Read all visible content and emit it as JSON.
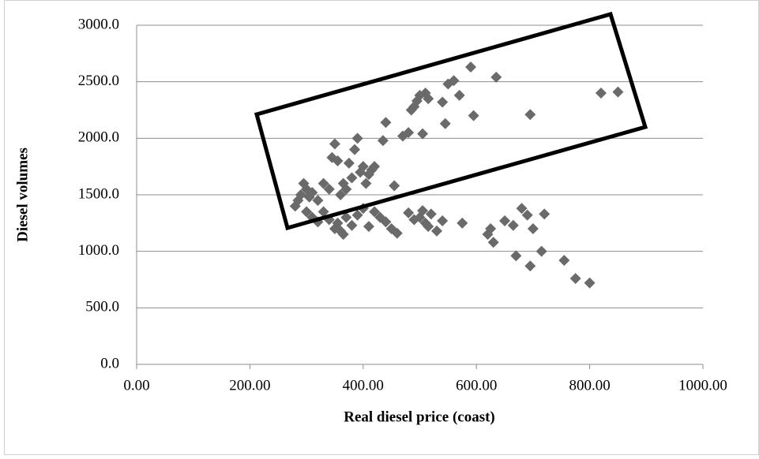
{
  "chart_data": {
    "type": "scatter",
    "x_label": "Real diesel price (coast)",
    "y_label": "Diesel volumes",
    "xlim": [
      0,
      1000
    ],
    "ylim": [
      0,
      3000
    ],
    "xticks": [
      {
        "value": 0,
        "label": "0.00"
      },
      {
        "value": 200,
        "label": "200.00"
      },
      {
        "value": 400,
        "label": "400.00"
      },
      {
        "value": 600,
        "label": "600.00"
      },
      {
        "value": 800,
        "label": "800.00"
      },
      {
        "value": 1000,
        "label": "1000.00"
      }
    ],
    "yticks": [
      {
        "value": 0,
        "label": "0.0"
      },
      {
        "value": 500,
        "label": "500.0"
      },
      {
        "value": 1000,
        "label": "1000.0"
      },
      {
        "value": 1500,
        "label": "1500.0"
      },
      {
        "value": 2000,
        "label": "2000.0"
      },
      {
        "value": 2500,
        "label": "2500.0"
      },
      {
        "value": 3000,
        "label": "3000.0"
      }
    ],
    "grid": true,
    "color": "#6a6a6a",
    "x": [
      280,
      285,
      290,
      295,
      300,
      305,
      310,
      320,
      330,
      340,
      345,
      350,
      355,
      360,
      365,
      370,
      375,
      380,
      385,
      390,
      395,
      400,
      405,
      410,
      415,
      420,
      435,
      440,
      455,
      470,
      480,
      485,
      490,
      495,
      500,
      505,
      510,
      515,
      540,
      545,
      550,
      560,
      570,
      590,
      595,
      635,
      695,
      820,
      850,
      300,
      310,
      320,
      330,
      340,
      350,
      355,
      360,
      365,
      370,
      380,
      390,
      400,
      410,
      420,
      430,
      440,
      450,
      460,
      480,
      490,
      500,
      505,
      510,
      515,
      520,
      530,
      540,
      575,
      620,
      625,
      630,
      650,
      665,
      670,
      680,
      690,
      695,
      700,
      715,
      720,
      755,
      775,
      800
    ],
    "values": [
      1400,
      1450,
      1500,
      1600,
      1550,
      1480,
      1520,
      1450,
      1600,
      1550,
      1830,
      1950,
      1800,
      1500,
      1600,
      1550,
      1780,
      1650,
      1900,
      2000,
      1700,
      1750,
      1600,
      1680,
      1720,
      1750,
      1980,
      2140,
      1580,
      2020,
      2050,
      2250,
      2280,
      2330,
      2380,
      2040,
      2400,
      2350,
      2320,
      2130,
      2480,
      2510,
      2380,
      2630,
      2200,
      2540,
      2210,
      2400,
      2410,
      1350,
      1300,
      1260,
      1350,
      1280,
      1200,
      1250,
      1180,
      1150,
      1300,
      1230,
      1320,
      1380,
      1220,
      1350,
      1300,
      1260,
      1200,
      1160,
      1340,
      1280,
      1300,
      1360,
      1250,
      1220,
      1330,
      1180,
      1270,
      1250,
      1150,
      1200,
      1080,
      1270,
      1230,
      960,
      1380,
      1320,
      870,
      1200,
      1000,
      1330,
      920,
      760,
      720
    ]
  }
}
